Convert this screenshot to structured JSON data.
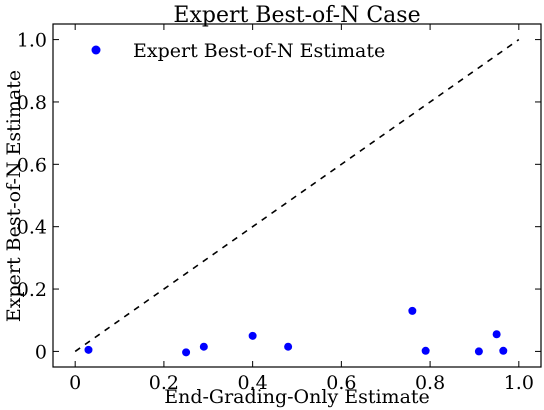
{
  "chart_data": {
    "type": "scatter",
    "title": "Expert Best-of-N Case",
    "xlabel": "End-Grading-Only Estimate",
    "ylabel": "Expert Best-of-N Estimate",
    "xlim": [
      -0.05,
      1.05
    ],
    "ylim": [
      -0.05,
      1.05
    ],
    "x_ticks": [
      {
        "value": 0,
        "label": "0"
      },
      {
        "value": 0.2,
        "label": "0.2"
      },
      {
        "value": 0.4,
        "label": "0.4"
      },
      {
        "value": 0.6,
        "label": "0.6"
      },
      {
        "value": 0.8,
        "label": "0.8"
      },
      {
        "value": 1.0,
        "label": "1.0"
      }
    ],
    "y_ticks": [
      {
        "value": 0,
        "label": "0"
      },
      {
        "value": 0.2,
        "label": "0.2"
      },
      {
        "value": 0.4,
        "label": "0.4"
      },
      {
        "value": 0.6,
        "label": "0.6"
      },
      {
        "value": 0.8,
        "label": "0.8"
      },
      {
        "value": 1.0,
        "label": "1.0"
      }
    ],
    "grid": false,
    "legend_position": "top-left",
    "series": [
      {
        "name": "Expert Best-of-N Estimate",
        "color": "#0000ff",
        "marker": "circle",
        "points": [
          {
            "x": 0.03,
            "y": 0.005
          },
          {
            "x": 0.25,
            "y": -0.003
          },
          {
            "x": 0.29,
            "y": 0.015
          },
          {
            "x": 0.4,
            "y": 0.05
          },
          {
            "x": 0.48,
            "y": 0.015
          },
          {
            "x": 0.76,
            "y": 0.13
          },
          {
            "x": 0.79,
            "y": 0.002
          },
          {
            "x": 0.91,
            "y": 0.0
          },
          {
            "x": 0.95,
            "y": 0.055
          },
          {
            "x": 0.965,
            "y": 0.002
          }
        ]
      }
    ],
    "reference_line": {
      "from": [
        0,
        0
      ],
      "to": [
        1,
        1
      ],
      "style": "dashed",
      "color": "#000000"
    }
  }
}
